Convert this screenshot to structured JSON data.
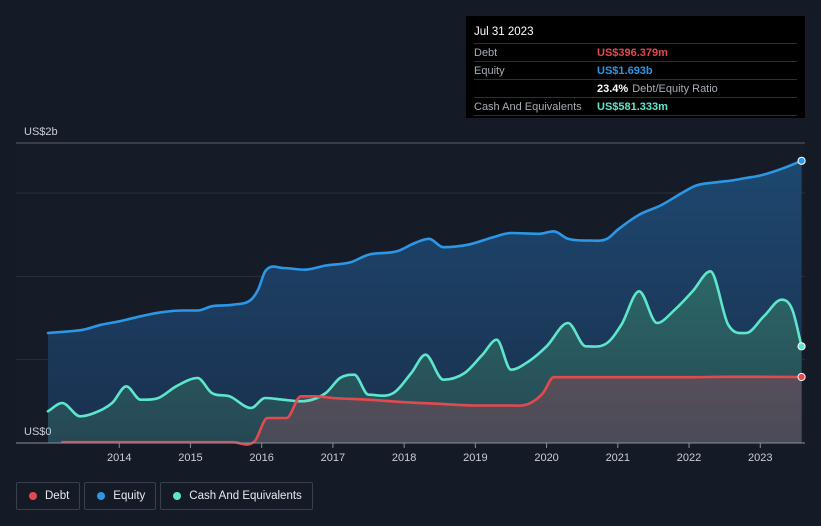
{
  "tooltip": {
    "date": "Jul 31 2023",
    "rows": [
      {
        "label": "Debt",
        "value": "US$396.379m",
        "color": "#e24a4f"
      },
      {
        "label": "Equity",
        "value": "US$1.693b",
        "color": "#2b97e6"
      },
      {
        "label": "",
        "value": "23.4%",
        "sub": "Debt/Equity Ratio",
        "color": "#ffffff"
      },
      {
        "label": "Cash And Equivalents",
        "value": "US$581.333m",
        "color": "#5ee6cd"
      }
    ]
  },
  "legend": [
    {
      "label": "Debt",
      "color": "#e24a4f"
    },
    {
      "label": "Equity",
      "color": "#2b97e6"
    },
    {
      "label": "Cash And Equivalents",
      "color": "#5ee6cd"
    }
  ],
  "chart_data": {
    "type": "area",
    "title": "",
    "xlabel": "",
    "ylabel": "",
    "y_top_label": "US$2b",
    "y_bottom_label": "US$0",
    "xlim": [
      2013.0,
      2023.6
    ],
    "ylim": [
      0,
      1.8
    ],
    "x_ticks": [
      2014,
      2015,
      2016,
      2017,
      2018,
      2019,
      2020,
      2021,
      2022,
      2023
    ],
    "x_tick_labels": [
      "2014",
      "2015",
      "2016",
      "2017",
      "2018",
      "2019",
      "2020",
      "2021",
      "2022",
      "2023"
    ],
    "series": [
      {
        "name": "Equity",
        "color": "#2b97e6",
        "fill": "#1d4266",
        "x": [
          2013.0,
          2013.3,
          2013.5,
          2013.75,
          2014.0,
          2014.3,
          2014.6,
          2014.9,
          2015.1,
          2015.3,
          2015.6,
          2015.85,
          2015.95,
          2016.05,
          2016.3,
          2016.6,
          2016.9,
          2017.25,
          2017.5,
          2017.9,
          2018.15,
          2018.35,
          2018.55,
          2018.9,
          2019.25,
          2019.5,
          2019.9,
          2020.1,
          2020.3,
          2020.6,
          2020.85,
          2021.0,
          2021.3,
          2021.6,
          2021.9,
          2022.1,
          2022.4,
          2022.6,
          2022.8,
          2023.0,
          2023.3,
          2023.58
        ],
        "values": [
          0.66,
          0.67,
          0.68,
          0.71,
          0.73,
          0.76,
          0.785,
          0.795,
          0.795,
          0.82,
          0.83,
          0.86,
          0.92,
          1.03,
          1.05,
          1.04,
          1.065,
          1.085,
          1.13,
          1.15,
          1.2,
          1.225,
          1.175,
          1.19,
          1.235,
          1.26,
          1.255,
          1.27,
          1.225,
          1.215,
          1.225,
          1.28,
          1.37,
          1.425,
          1.5,
          1.545,
          1.565,
          1.575,
          1.59,
          1.605,
          1.645,
          1.693
        ]
      },
      {
        "name": "Cash And Equivalents",
        "color": "#5ee6cd",
        "fill": "#265755",
        "x": [
          2013.0,
          2013.2,
          2013.45,
          2013.65,
          2013.9,
          2014.1,
          2014.3,
          2014.55,
          2014.8,
          2015.1,
          2015.3,
          2015.55,
          2015.85,
          2016.05,
          2016.3,
          2016.55,
          2016.9,
          2017.1,
          2017.3,
          2017.5,
          2017.85,
          2018.1,
          2018.3,
          2018.55,
          2018.85,
          2019.1,
          2019.3,
          2019.5,
          2019.75,
          2020.0,
          2020.3,
          2020.55,
          2020.85,
          2021.05,
          2021.3,
          2021.55,
          2021.8,
          2022.05,
          2022.3,
          2022.55,
          2022.8,
          2023.05,
          2023.3,
          2023.45,
          2023.58
        ],
        "values": [
          0.19,
          0.24,
          0.16,
          0.18,
          0.24,
          0.34,
          0.26,
          0.27,
          0.34,
          0.39,
          0.3,
          0.28,
          0.21,
          0.27,
          0.26,
          0.25,
          0.3,
          0.39,
          0.41,
          0.29,
          0.3,
          0.42,
          0.53,
          0.38,
          0.42,
          0.53,
          0.62,
          0.44,
          0.49,
          0.58,
          0.72,
          0.58,
          0.6,
          0.71,
          0.91,
          0.72,
          0.8,
          0.91,
          1.03,
          0.71,
          0.66,
          0.76,
          0.86,
          0.8,
          0.58
        ]
      },
      {
        "name": "Debt",
        "color": "#e24a4f",
        "fill": "#4b4a55",
        "x": [
          2013.2,
          2015.6,
          2015.9,
          2016.08,
          2016.35,
          2016.55,
          2016.75,
          2017.0,
          2017.5,
          2018.0,
          2018.5,
          2019.0,
          2019.5,
          2019.75,
          2019.95,
          2020.1,
          2020.6,
          2021.0,
          2022.0,
          2022.5,
          2023.0,
          2023.58
        ],
        "values": [
          0.005,
          0.005,
          0.01,
          0.15,
          0.15,
          0.28,
          0.28,
          0.27,
          0.26,
          0.245,
          0.235,
          0.225,
          0.225,
          0.235,
          0.3,
          0.395,
          0.395,
          0.395,
          0.395,
          0.397,
          0.397,
          0.396
        ]
      }
    ]
  }
}
